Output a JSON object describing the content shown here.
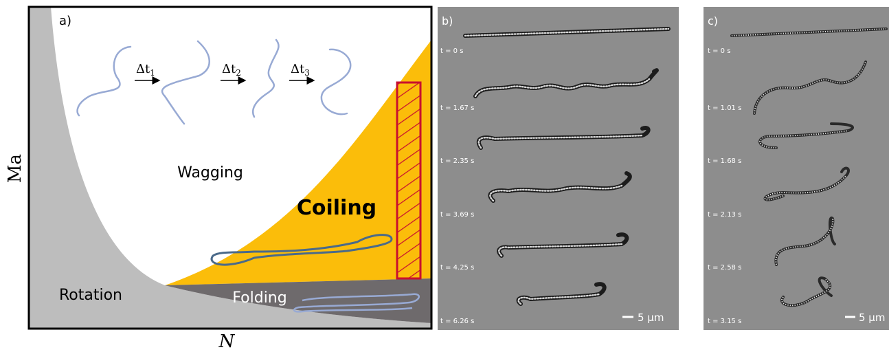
{
  "panel_a": {
    "label": "a)",
    "y_axis_label": "Ma",
    "x_axis_label": "N",
    "regions": {
      "wagging": "Wagging",
      "coiling": "Coiling",
      "rotation": "Rotation",
      "folding": "Folding"
    },
    "time_steps": [
      {
        "symbol": "Δt",
        "subscript": "1"
      },
      {
        "symbol": "Δt",
        "subscript": "2"
      },
      {
        "symbol": "Δt",
        "subscript": "3"
      }
    ]
  },
  "panel_b": {
    "label": "b)",
    "frames": [
      "t = 0 s",
      "t = 1.67 s",
      "t = 2.35 s",
      "t = 3.69 s",
      "t = 4.25 s",
      "t = 6.26 s"
    ],
    "scale_bar": "5 µm"
  },
  "panel_c": {
    "label": "c)",
    "frames": [
      "t = 0 s",
      "t = 1.01 s",
      "t = 1.68 s",
      "t = 2.13 s",
      "t = 2.58 s",
      "t = 3.15 s"
    ],
    "scale_bar": "5 µm"
  }
}
